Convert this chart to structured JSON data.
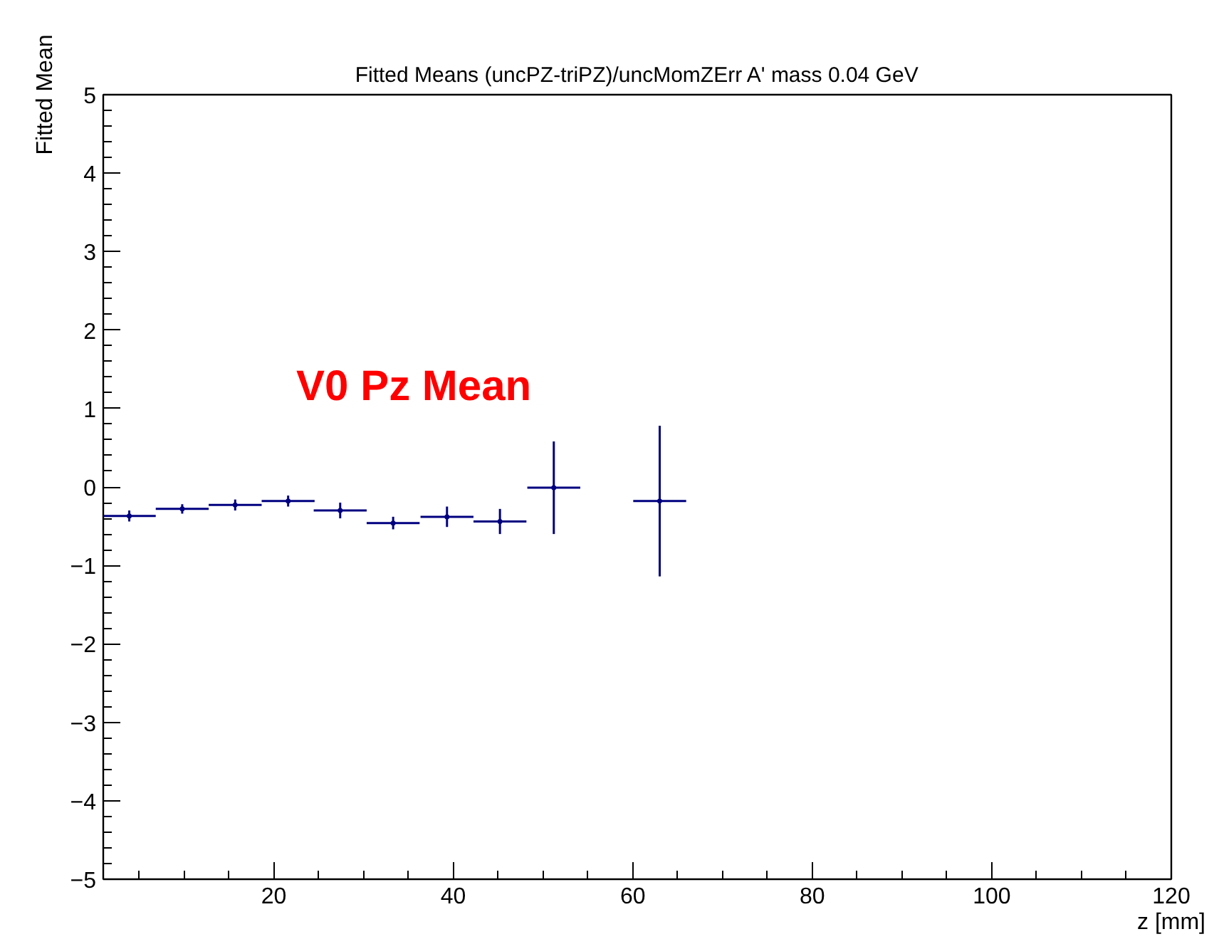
{
  "chart_data": {
    "type": "scatter",
    "title": "Fitted Means (uncPZ-triPZ)/uncMomZErr A' mass 0.04 GeV",
    "xlabel": "z [mm]",
    "ylabel": "Fitted Mean",
    "annotations": [
      "V0 Pz Mean"
    ],
    "x": [
      3.9,
      9.8,
      15.7,
      21.6,
      27.4,
      33.3,
      39.3,
      45.2,
      51.2,
      63.0
    ],
    "series": [
      {
        "color": "#000080",
        "values": [
          -0.37,
          -0.28,
          -0.23,
          -0.18,
          -0.3,
          -0.46,
          -0.38,
          -0.44,
          -0.01,
          -0.18
        ],
        "errors": [
          0.07,
          0.06,
          0.07,
          0.07,
          0.1,
          0.08,
          0.13,
          0.16,
          0.59,
          0.96
        ],
        "xerrors": [
          2.95,
          2.95,
          2.95,
          2.95,
          2.95,
          2.95,
          2.95,
          2.95,
          2.95,
          2.95
        ]
      }
    ],
    "marker": "none",
    "grid": false,
    "xlim": [
      1,
      120
    ],
    "ylim": [
      -5,
      5
    ],
    "xticks": [
      20,
      40,
      60,
      80,
      100,
      120
    ],
    "yticks": [
      {
        "value": -5,
        "label": "−5"
      },
      {
        "value": -4,
        "label": "−4"
      },
      {
        "value": -3,
        "label": "−3"
      },
      {
        "value": -2,
        "label": "−2"
      },
      {
        "value": -1,
        "label": "−1"
      },
      0,
      1,
      2,
      3,
      4,
      5
    ]
  }
}
